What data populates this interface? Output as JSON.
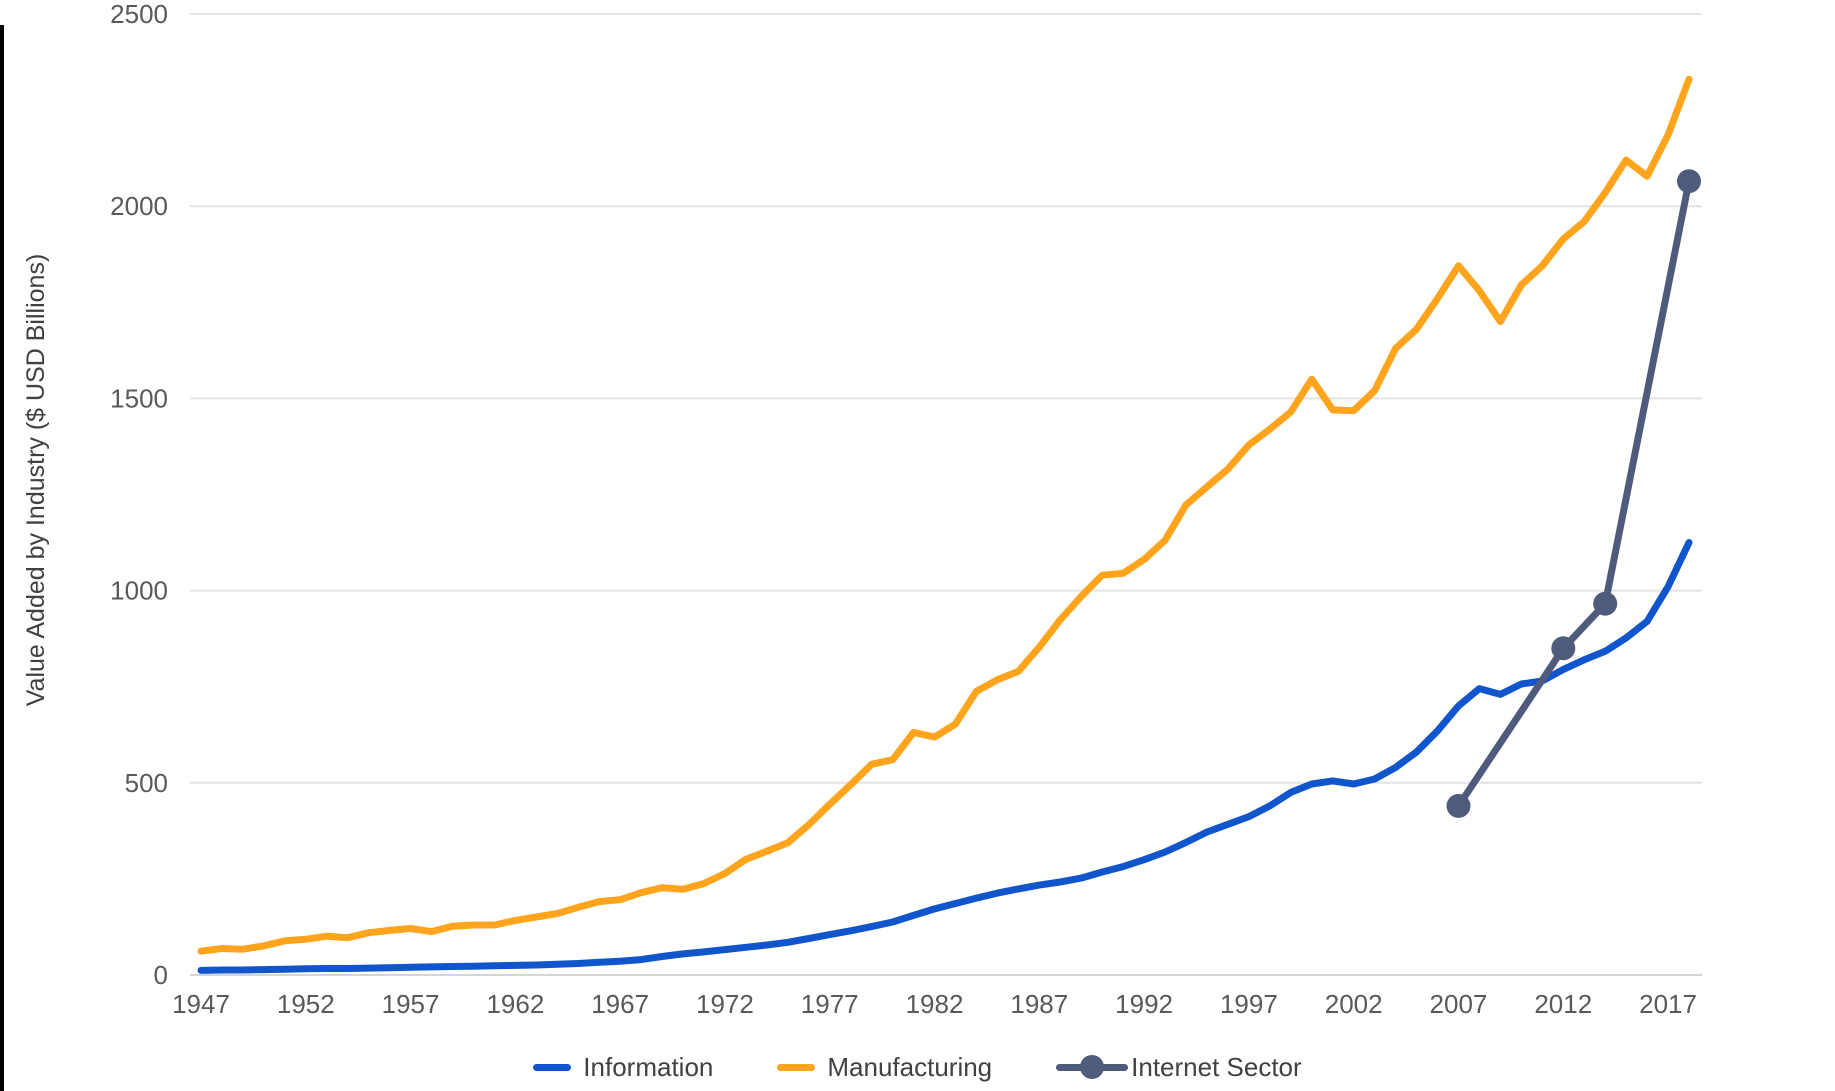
{
  "page": {
    "background_color": "#FFFFFF",
    "left_edge_bar_color": "#000000"
  },
  "chart_data": {
    "type": "line",
    "title": "",
    "xlabel": "",
    "ylabel": "Value Added by Industry ($ USD Billions)",
    "x_unit": "year",
    "x_range": [
      1947,
      2018
    ],
    "ylim": [
      0,
      2500
    ],
    "y_ticks": [
      0,
      500,
      1000,
      1500,
      2000,
      2500
    ],
    "x_ticks": [
      1947,
      1952,
      1957,
      1962,
      1967,
      1972,
      1977,
      1982,
      1987,
      1992,
      1997,
      2002,
      2007,
      2012,
      2017
    ],
    "grid": "horizontal-only",
    "legend_position": "bottom-center",
    "colors": {
      "grid_line": "#E4E4E4",
      "zero_line": "#D5D5D5",
      "tick_text": "#58595B",
      "label_text": "#3F4042"
    },
    "series": [
      {
        "name": "Information",
        "color": "#1155CC",
        "line_width": 7,
        "marker": "none",
        "x_start": 1947,
        "x_step": 1,
        "values": [
          12,
          13,
          13,
          14,
          15,
          16,
          17,
          17,
          18,
          19,
          20,
          21,
          22,
          23,
          24,
          25,
          26,
          28,
          30,
          33,
          36,
          40,
          48,
          55,
          60,
          66,
          72,
          78,
          85,
          95,
          105,
          115,
          126,
          138,
          155,
          172,
          186,
          200,
          213,
          224,
          234,
          242,
          252,
          268,
          282,
          300,
          320,
          345,
          372,
          392,
          412,
          440,
          475,
          497,
          505,
          497,
          510,
          540,
          580,
          635,
          700,
          745,
          730,
          757,
          765,
          795,
          820,
          842,
          877,
          920,
          1010,
          1125
        ]
      },
      {
        "name": "Manufacturing",
        "color": "#FFA41C",
        "line_width": 7,
        "marker": "none",
        "x_start": 1947,
        "x_step": 1,
        "values": [
          62,
          69,
          67,
          76,
          89,
          93,
          101,
          97,
          110,
          116,
          121,
          113,
          127,
          130,
          130,
          142,
          151,
          160,
          176,
          191,
          196,
          214,
          227,
          223,
          238,
          264,
          301,
          322,
          344,
          391,
          444,
          495,
          548,
          560,
          631,
          619,
          653,
          738,
          768,
          790,
          853,
          924,
          985,
          1040,
          1045,
          1081,
          1131,
          1223,
          1270,
          1316,
          1379,
          1420,
          1465,
          1550,
          1470,
          1468,
          1520,
          1630,
          1680,
          1760,
          1845,
          1780,
          1700,
          1795,
          1845,
          1915,
          1960,
          2035,
          2120,
          2078,
          2185,
          2330
        ]
      },
      {
        "name": "Internet Sector",
        "color": "#4E5B7D",
        "line_width": 7,
        "marker": "circle",
        "marker_radius": 12,
        "x": [
          2007,
          2012,
          2014,
          2018
        ],
        "values": [
          440,
          850,
          966,
          2065
        ]
      }
    ]
  }
}
